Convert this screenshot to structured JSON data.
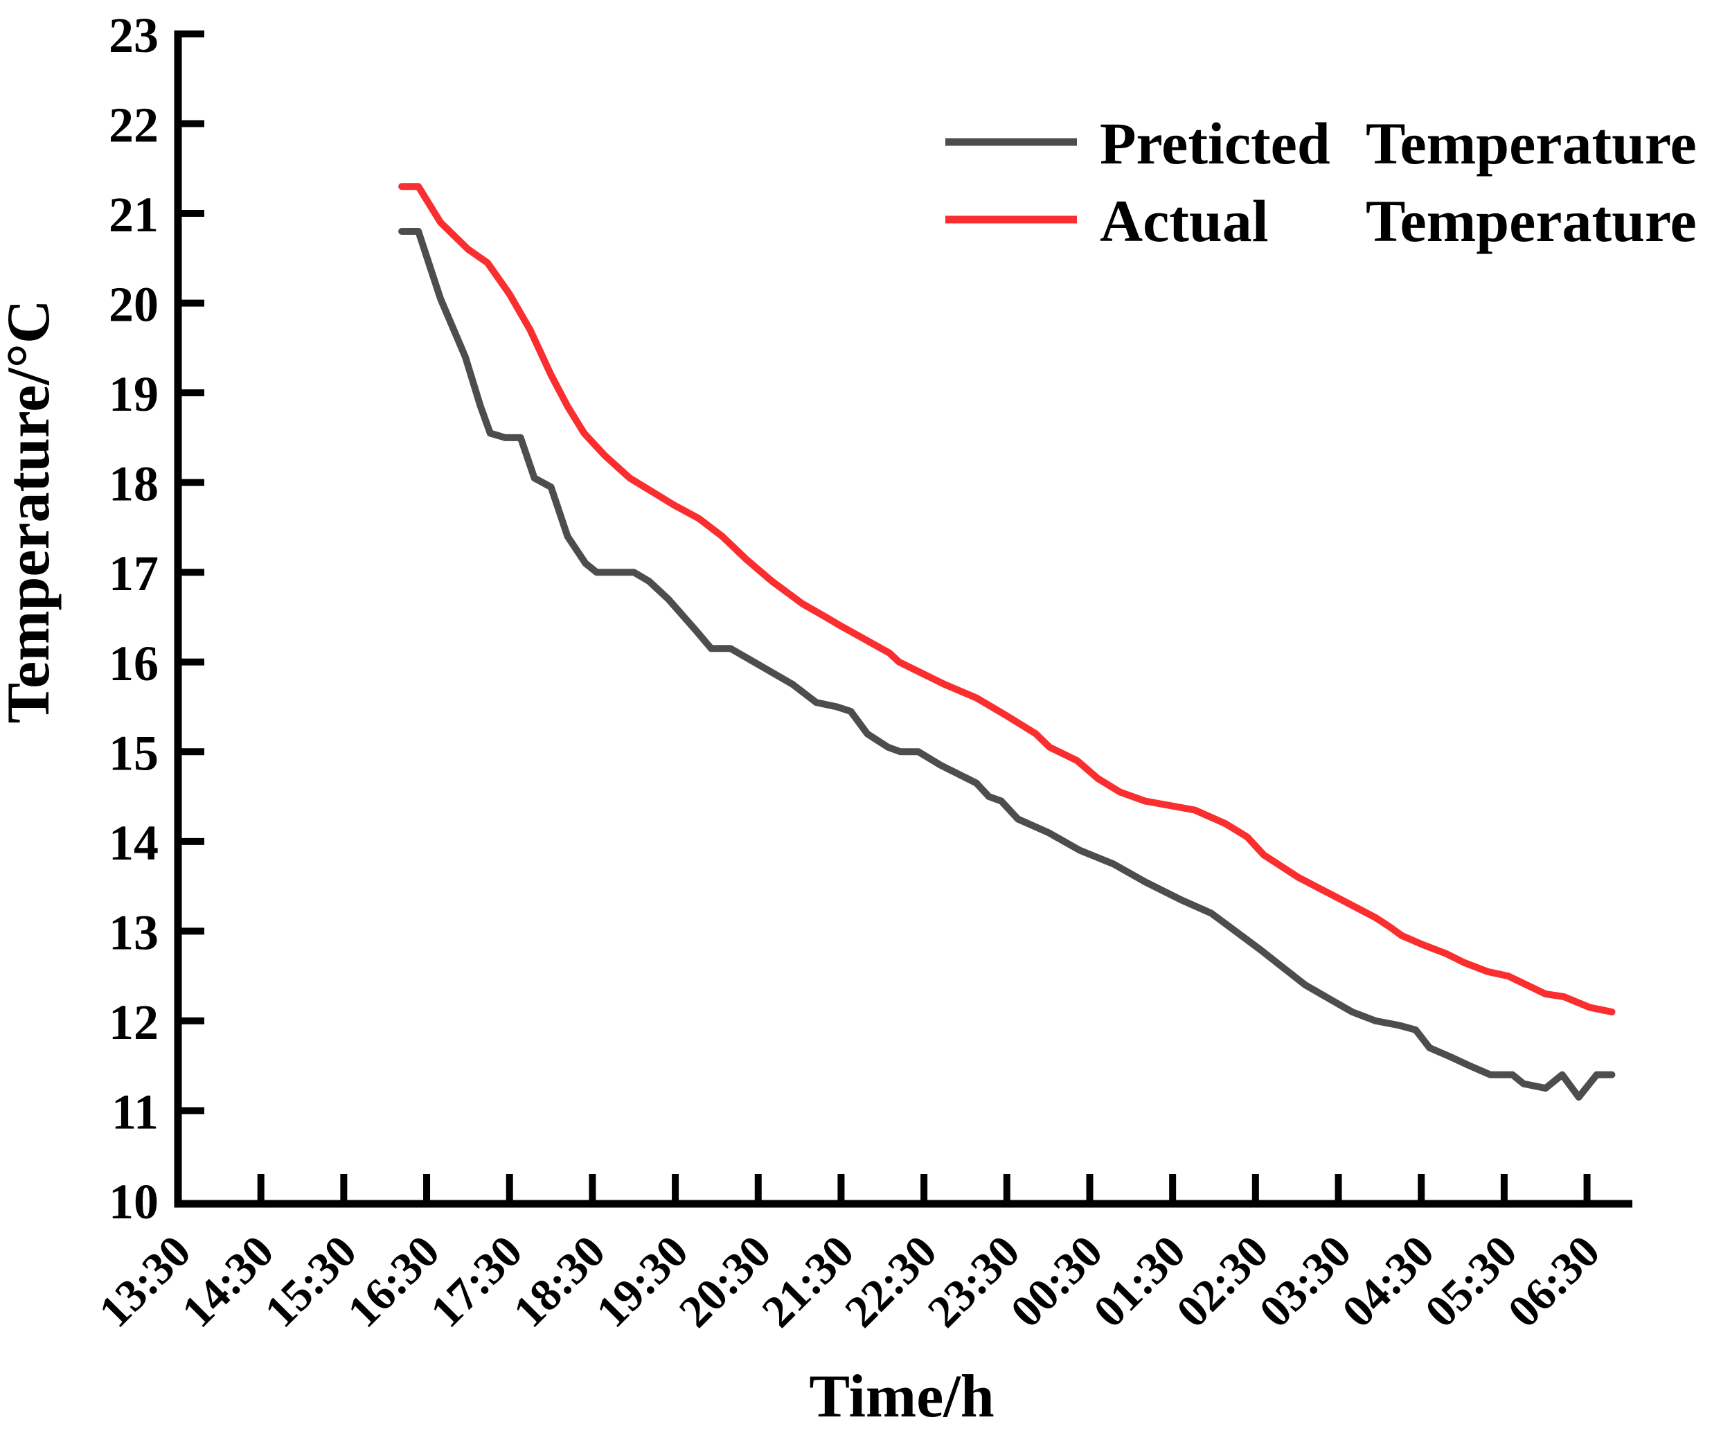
{
  "figure": {
    "background": "#ffffff",
    "axis_color": "#000000",
    "text_color": "#000000"
  },
  "legend": {
    "entries": [
      {
        "col1": "Preticted",
        "col2": "Temperature",
        "color": "#4d4d4d"
      },
      {
        "col1": "Actual",
        "col2": "Temperature",
        "color": "#fa2e2e"
      }
    ]
  },
  "chart_data": {
    "type": "line",
    "title": "",
    "xlabel": "Time/h",
    "ylabel": "Temperature/°C",
    "ylim": [
      10,
      23
    ],
    "y_ticks": [
      10,
      11,
      12,
      13,
      14,
      15,
      16,
      17,
      18,
      19,
      20,
      21,
      22,
      23
    ],
    "x_tick_labels": [
      "13:30",
      "14:30",
      "15:30",
      "16:30",
      "17:30",
      "18:30",
      "19:30",
      "20:30",
      "21:30",
      "22:30",
      "23:30",
      "00:30",
      "01:30",
      "02:30",
      "03:30",
      "04:30",
      "05:30",
      "06:30"
    ],
    "x_axis_start": "13:30",
    "grid": false,
    "legend_position": "upper-right-inside",
    "series": [
      {
        "name": "Preticted Temperature",
        "color": "#4d4d4d",
        "points": [
          [
            "16:12",
            20.8
          ],
          [
            "16:24",
            20.8
          ],
          [
            "16:40",
            20.05
          ],
          [
            "16:58",
            19.4
          ],
          [
            "17:09",
            18.85
          ],
          [
            "17:16",
            18.55
          ],
          [
            "17:27",
            18.5
          ],
          [
            "17:38",
            18.5
          ],
          [
            "17:48",
            18.05
          ],
          [
            "18:00",
            17.95
          ],
          [
            "18:12",
            17.4
          ],
          [
            "18:25",
            17.1
          ],
          [
            "18:33",
            17.0
          ],
          [
            "19:00",
            17.0
          ],
          [
            "19:11",
            16.9
          ],
          [
            "19:25",
            16.7
          ],
          [
            "19:45",
            16.35
          ],
          [
            "19:56",
            16.15
          ],
          [
            "20:10",
            16.15
          ],
          [
            "20:27",
            16.0
          ],
          [
            "20:55",
            15.75
          ],
          [
            "21:12",
            15.55
          ],
          [
            "21:27",
            15.5
          ],
          [
            "21:37",
            15.45
          ],
          [
            "21:49",
            15.2
          ],
          [
            "22:04",
            15.05
          ],
          [
            "22:13",
            15.0
          ],
          [
            "22:26",
            15.0
          ],
          [
            "22:42",
            14.85
          ],
          [
            "23:08",
            14.65
          ],
          [
            "23:17",
            14.5
          ],
          [
            "23:26",
            14.45
          ],
          [
            "23:38",
            14.25
          ],
          [
            "00:00",
            14.1
          ],
          [
            "00:23",
            13.9
          ],
          [
            "00:47",
            13.75
          ],
          [
            "01:10",
            13.55
          ],
          [
            "01:36",
            13.35
          ],
          [
            "01:58",
            13.2
          ],
          [
            "02:33",
            12.8
          ],
          [
            "03:06",
            12.4
          ],
          [
            "03:40",
            12.1
          ],
          [
            "03:57",
            12.0
          ],
          [
            "04:14",
            11.95
          ],
          [
            "04:26",
            11.9
          ],
          [
            "04:36",
            11.7
          ],
          [
            "04:51",
            11.6
          ],
          [
            "05:05",
            11.5
          ],
          [
            "05:20",
            11.4
          ],
          [
            "05:36",
            11.4
          ],
          [
            "05:44",
            11.3
          ],
          [
            "06:00",
            11.25
          ],
          [
            "06:12",
            11.4
          ],
          [
            "06:24",
            11.15
          ],
          [
            "06:37",
            11.4
          ],
          [
            "06:48",
            11.4
          ]
        ]
      },
      {
        "name": "Actual Temperature",
        "color": "#fa2e2e",
        "points": [
          [
            "16:12",
            21.3
          ],
          [
            "16:24",
            21.3
          ],
          [
            "16:40",
            20.9
          ],
          [
            "17:00",
            20.6
          ],
          [
            "17:14",
            20.45
          ],
          [
            "17:30",
            20.1
          ],
          [
            "17:45",
            19.7
          ],
          [
            "18:00",
            19.2
          ],
          [
            "18:12",
            18.85
          ],
          [
            "18:24",
            18.55
          ],
          [
            "18:39",
            18.3
          ],
          [
            "18:57",
            18.05
          ],
          [
            "19:13",
            17.9
          ],
          [
            "19:29",
            17.75
          ],
          [
            "19:47",
            17.6
          ],
          [
            "20:04",
            17.4
          ],
          [
            "20:21",
            17.15
          ],
          [
            "20:40",
            16.9
          ],
          [
            "21:02",
            16.65
          ],
          [
            "21:19",
            16.5
          ],
          [
            "21:30",
            16.4
          ],
          [
            "22:05",
            16.1
          ],
          [
            "22:12",
            16.0
          ],
          [
            "22:45",
            15.75
          ],
          [
            "23:08",
            15.6
          ],
          [
            "23:30",
            15.4
          ],
          [
            "23:51",
            15.2
          ],
          [
            "00:01",
            15.05
          ],
          [
            "00:21",
            14.9
          ],
          [
            "00:36",
            14.7
          ],
          [
            "00:52",
            14.55
          ],
          [
            "01:10",
            14.45
          ],
          [
            "01:46",
            14.35
          ],
          [
            "02:08",
            14.2
          ],
          [
            "02:24",
            14.05
          ],
          [
            "02:36",
            13.85
          ],
          [
            "03:01",
            13.6
          ],
          [
            "03:26",
            13.4
          ],
          [
            "03:57",
            13.15
          ],
          [
            "04:07",
            13.05
          ],
          [
            "04:16",
            12.95
          ],
          [
            "04:31",
            12.85
          ],
          [
            "04:48",
            12.75
          ],
          [
            "05:01",
            12.65
          ],
          [
            "05:18",
            12.55
          ],
          [
            "05:33",
            12.5
          ],
          [
            "06:00",
            12.3
          ],
          [
            "06:13",
            12.27
          ],
          [
            "06:32",
            12.15
          ],
          [
            "06:48",
            12.1
          ]
        ]
      }
    ]
  }
}
